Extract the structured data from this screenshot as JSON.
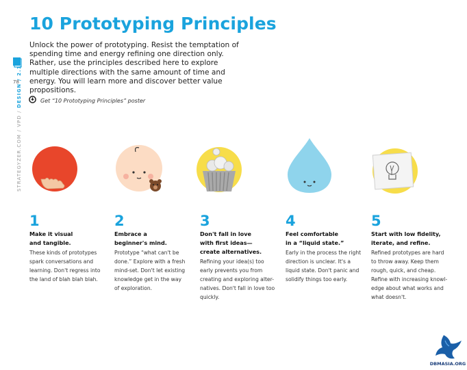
{
  "title": "10 Prototyping Principles",
  "intro": "Unlock the power of prototyping. Resist the temptation of spending time and energy refining one direction only. Rather, use the principles described here to explore multiple directions with the same amount of time and energy. You will learn more and discover better value propositions.",
  "poster_link": "Get “10 Prototyping Principles” poster",
  "page_number": "78",
  "side_nav": {
    "prefix": "STRATEGYZER.COM / VPD / ",
    "section": "DESIGN / 2.1"
  },
  "principles": [
    {
      "number": "1",
      "heading": "Make it visual\nand tangible.",
      "body": "These kinds of prototypes\nspark conversations and\nlearning. Don't regress into\nthe land of blah blah blah."
    },
    {
      "number": "2",
      "heading": "Embrace a\nbeginner's mind.",
      "body": "Prototype “what can't be\ndone.” Explore with a fresh\nmind-set. Don't let existing\nknowledge get in the way\nof exploration."
    },
    {
      "number": "3",
      "heading": "Don't fall in love\nwith first ideas—\ncreate alternatives.",
      "body": "Refining your idea(s) too\nearly prevents you from\ncreating and exploring alter-\nnatives. Don't fall in love too\nquickly."
    },
    {
      "number": "4",
      "heading": "Feel comfortable\nin a “liquid state.”",
      "body": "Early in the process the right\ndirection is unclear. It's a\nliquid state. Don't panic and\nsolidify things too early."
    },
    {
      "number": "5",
      "heading": "Start with low fidelity,\niterate, and refine.",
      "body": "Refined prototypes are hard\nto throw away. Keep them\nrough, quick, and cheap.\nRefine with increasing knowl-\nedge about what works and\nwhat doesn't."
    }
  ],
  "logo_text": "DBMASIA.ORG",
  "colors": {
    "accent": "#1aa3dd",
    "ball": "#e8462b",
    "yellow": "#f7dd4a",
    "drop": "#8fd4ec"
  }
}
